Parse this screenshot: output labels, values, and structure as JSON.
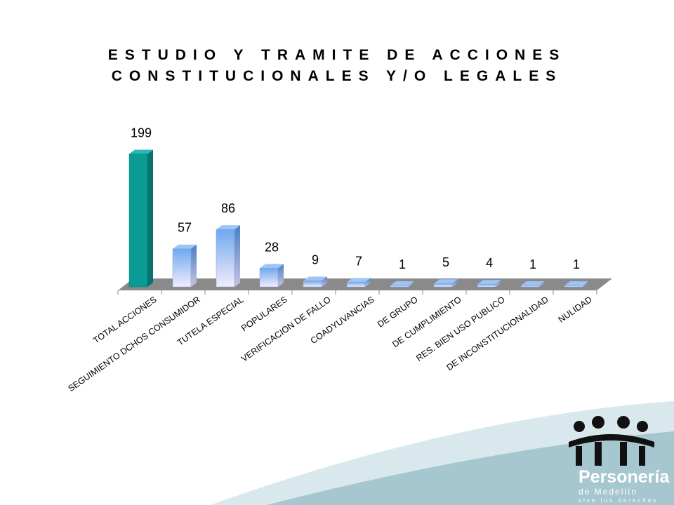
{
  "slide": {
    "title_line1": "ESTUDIO Y TRAMITE DE ACCIONES",
    "title_line2": "CONSTITUCIONALES Y/O LEGALES"
  },
  "chart_data": {
    "type": "bar",
    "title": "ESTUDIO Y TRAMITE DE ACCIONES CONSTITUCIONALES Y/O LEGALES",
    "xlabel": "",
    "ylabel": "",
    "categories": [
      "TOTAL ACCIONES",
      "SEGUIMIENTO DCHOS CONSUMIDOR",
      "TUTELA ESPECIAL",
      "POPULARES",
      "VERIFICACION DE FALLO",
      "COADYUVANCIAS",
      "DE GRUPO",
      "DE CUMPLIMIENTO",
      "RES. BIEN USO PUBLICO",
      "DE INCONSTITUCIONALIDAD",
      "NULIDAD"
    ],
    "values": [
      199,
      57,
      86,
      28,
      9,
      7,
      1,
      5,
      4,
      1,
      1
    ],
    "data_labels": [
      "199",
      "57",
      "86",
      "28",
      "9",
      "7",
      "1",
      "5",
      "4",
      "1",
      "1"
    ],
    "ylim": [
      0,
      210
    ],
    "grid": false,
    "legend": "none",
    "colors": {
      "highlight_bar": "#0b9b94",
      "bar_top": "#6fa8ef",
      "bar_bottom": "#f3ecfb",
      "floor": "#8a8a8a"
    }
  },
  "logo": {
    "name": "Personería",
    "city": "de Medellín",
    "tagline": "vive tus derechos",
    "icon": "people-figures-icon",
    "colors": {
      "wave_light": "#d9e8ec",
      "wave_dark": "#a6c6d0"
    }
  }
}
